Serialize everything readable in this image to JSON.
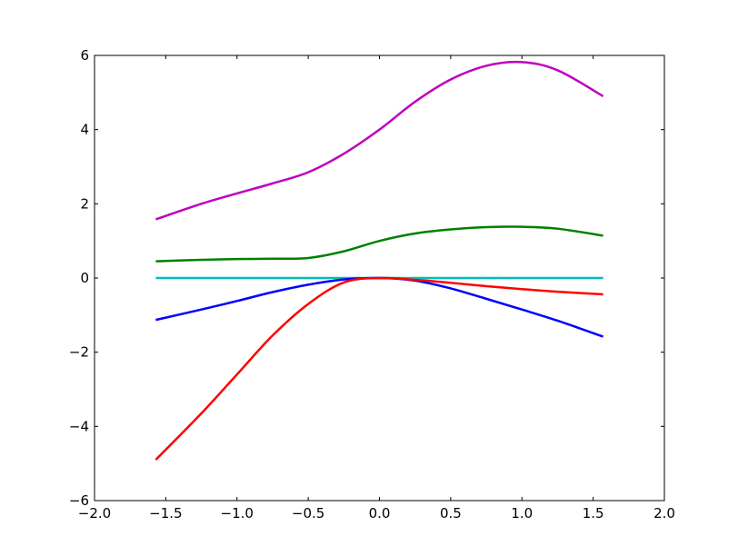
{
  "chart_data": {
    "type": "line",
    "title": "",
    "xlabel": "",
    "ylabel": "",
    "xlim": [
      -2.0,
      2.0
    ],
    "ylim": [
      -6,
      6
    ],
    "grid": false,
    "legend": "none",
    "x_ticks": [
      {
        "value": -2.0,
        "label": "−2.0"
      },
      {
        "value": -1.5,
        "label": "−1.5"
      },
      {
        "value": -1.0,
        "label": "−1.0"
      },
      {
        "value": -0.5,
        "label": "−0.5"
      },
      {
        "value": 0.0,
        "label": "0.0"
      },
      {
        "value": 0.5,
        "label": "0.5"
      },
      {
        "value": 1.0,
        "label": "1.0"
      },
      {
        "value": 1.5,
        "label": "1.5"
      },
      {
        "value": 2.0,
        "label": "2.0"
      }
    ],
    "y_ticks": [
      {
        "value": -6,
        "label": "−6"
      },
      {
        "value": -4,
        "label": "−4"
      },
      {
        "value": -2,
        "label": "−2"
      },
      {
        "value": 0,
        "label": "0"
      },
      {
        "value": 2,
        "label": "2"
      },
      {
        "value": 4,
        "label": "4"
      },
      {
        "value": 6,
        "label": "6"
      }
    ],
    "x": [
      -1.57,
      -1.25,
      -1.0,
      -0.75,
      -0.5,
      -0.25,
      0.0,
      0.25,
      0.5,
      0.75,
      1.0,
      1.25,
      1.57
    ],
    "series": [
      {
        "color": "#bf00bf",
        "values": [
          1.58,
          2.0,
          2.28,
          2.55,
          2.85,
          3.35,
          4.0,
          4.75,
          5.35,
          5.72,
          5.82,
          5.6,
          4.9
        ]
      },
      {
        "color": "#008000",
        "values": [
          0.45,
          0.49,
          0.51,
          0.52,
          0.54,
          0.72,
          1.0,
          1.2,
          1.31,
          1.37,
          1.38,
          1.33,
          1.14
        ]
      },
      {
        "color": "#00bfbf",
        "values": [
          0,
          0,
          0,
          0,
          0,
          0,
          0,
          0,
          0,
          0,
          0,
          0,
          0
        ]
      },
      {
        "color": "#0000ff",
        "values": [
          -1.13,
          -0.85,
          -0.62,
          -0.38,
          -0.18,
          -0.04,
          0.0,
          -0.07,
          -0.28,
          -0.56,
          -0.85,
          -1.15,
          -1.58
        ]
      },
      {
        "color": "#ff0000",
        "values": [
          -4.9,
          -3.65,
          -2.6,
          -1.55,
          -0.7,
          -0.12,
          0.0,
          -0.05,
          -0.13,
          -0.22,
          -0.3,
          -0.37,
          -0.44
        ]
      }
    ]
  }
}
